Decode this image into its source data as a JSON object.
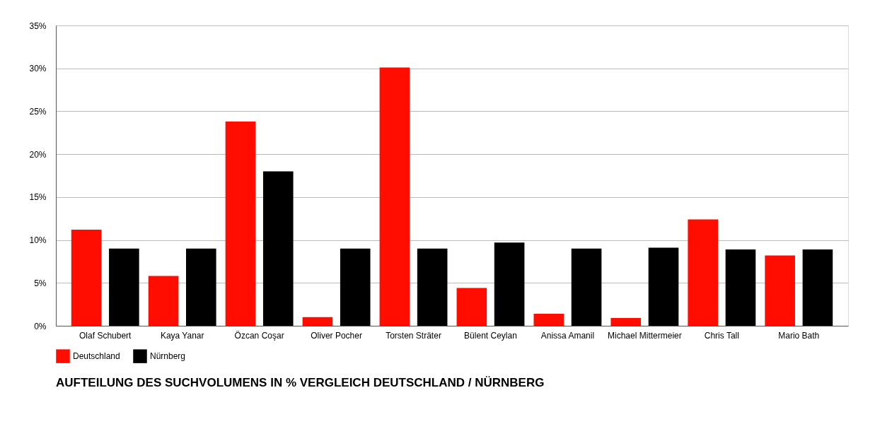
{
  "chart_data": {
    "type": "bar",
    "title": "AUFTEILUNG DES SUCHVOLUMENS IN % VERGLEICH DEUTSCHLAND / NÜRNBERG",
    "categories": [
      "Olaf Schubert",
      "Kaya Yanar",
      "Özcan Coşar",
      "Oliver Pocher",
      "Torsten Sträter",
      "Bülent Ceylan",
      "Anissa Amanil",
      "Michael Mittermeier",
      "Chris Tall",
      "Mario Bath"
    ],
    "series": [
      {
        "name": "Deutschland",
        "color": "#ff0d00",
        "values": [
          11.2,
          5.8,
          23.8,
          1.0,
          30.1,
          4.4,
          1.4,
          0.9,
          12.4,
          8.2
        ]
      },
      {
        "name": "Nürnberg",
        "color": "#000000",
        "values": [
          9.0,
          9.0,
          18.0,
          9.0,
          9.0,
          9.7,
          9.0,
          9.1,
          8.9,
          8.9
        ]
      }
    ],
    "ylim": [
      0,
      35
    ],
    "yticks": [
      {
        "value": 0,
        "label": "0%"
      },
      {
        "value": 5,
        "label": "5%"
      },
      {
        "value": 10,
        "label": "10%"
      },
      {
        "value": 15,
        "label": "15%"
      },
      {
        "value": 20,
        "label": "20%"
      },
      {
        "value": 25,
        "label": "25%"
      },
      {
        "value": 30,
        "label": "30%"
      },
      {
        "value": 35,
        "label": "35%"
      }
    ],
    "grid": "y",
    "legend": "bottom left"
  }
}
